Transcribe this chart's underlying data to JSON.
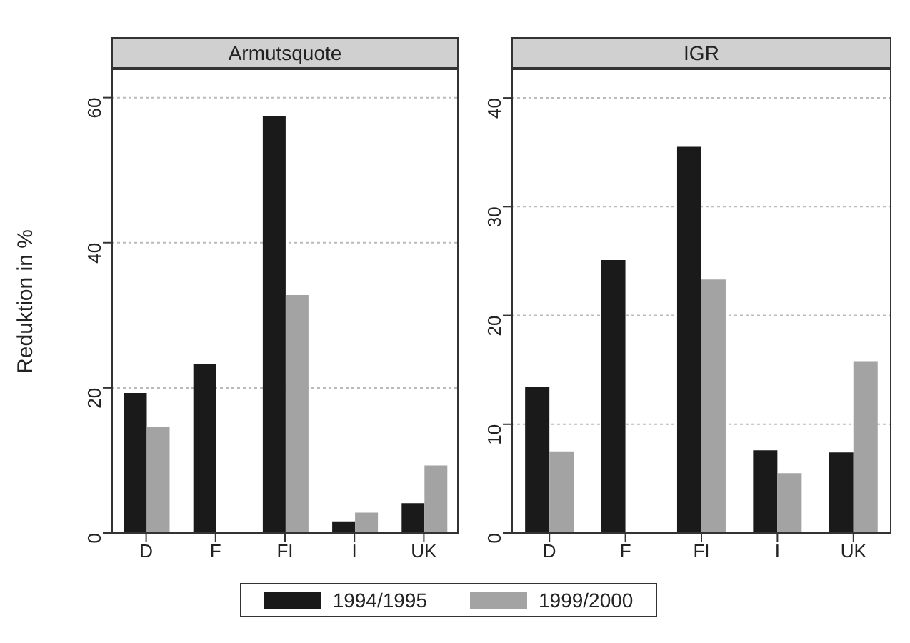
{
  "chart_data": [
    {
      "type": "bar",
      "title": "Armutsquote",
      "ylabel": "Reduktion in %",
      "categories": [
        "D",
        "F",
        "FI",
        "I",
        "UK"
      ],
      "series": [
        {
          "name": "1994/1995",
          "color": "#1a1a1a",
          "values": [
            19.3,
            23.3,
            57.4,
            1.6,
            4.1
          ]
        },
        {
          "name": "1999/2000",
          "color": "#a3a3a3",
          "values": [
            14.6,
            null,
            32.8,
            2.8,
            9.3
          ]
        }
      ],
      "ylim": [
        0,
        64
      ],
      "yticks": [
        0,
        20,
        40,
        60
      ],
      "grid": "y",
      "legend": "bottom"
    },
    {
      "type": "bar",
      "title": "IGR",
      "categories": [
        "D",
        "F",
        "FI",
        "I",
        "UK"
      ],
      "series": [
        {
          "name": "1994/1995",
          "color": "#1a1a1a",
          "values": [
            13.4,
            25.1,
            35.5,
            7.6,
            7.4
          ]
        },
        {
          "name": "1999/2000",
          "color": "#a3a3a3",
          "values": [
            7.5,
            null,
            23.3,
            5.5,
            15.8
          ]
        }
      ],
      "ylim": [
        0,
        42.7
      ],
      "yticks": [
        0,
        10,
        20,
        30,
        40
      ],
      "grid": "y"
    }
  ]
}
